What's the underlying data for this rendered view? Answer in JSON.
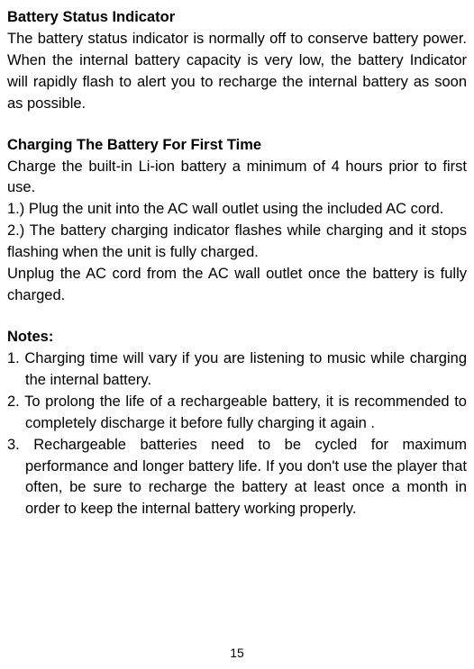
{
  "section1": {
    "heading": "Battery Status Indicator",
    "body": "The battery status indicator is normally off to conserve battery power. When the internal battery capacity is very low, the battery Indicator will rapidly flash to alert you to recharge the internal battery as soon as possible."
  },
  "section2": {
    "heading": "Charging The Battery For First Time",
    "intro": "Charge the built-in Li-ion battery a minimum of 4 hours prior to first use.",
    "step1": "1.) Plug the unit into the AC wall outlet using the included AC cord.",
    "step2": "2.) The battery charging indicator flashes while charging and it stops flashing when the unit is fully charged.",
    "unplug": "Unplug the AC cord from the AC wall outlet once the battery is fully charged."
  },
  "notes": {
    "heading": "Notes:",
    "item1": "1. Charging time will vary if you are listening to music while charging the internal battery.",
    "item2": "2. To prolong the life of a rechargeable battery, it is recommended to completely discharge it before fully charging it again .",
    "item3": "3. Rechargeable batteries need to be cycled for maximum performance and longer battery life. If you don't use the player that often, be sure to recharge the battery at least once  a month in order to keep the internal battery working properly."
  },
  "pageNumber": "15"
}
